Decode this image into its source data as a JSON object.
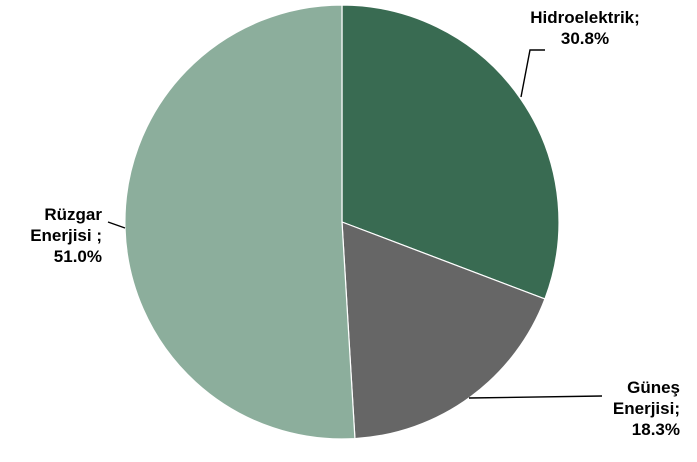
{
  "chart_data": {
    "type": "pie",
    "title": "",
    "start_angle_deg": 0,
    "direction": "clockwise",
    "slices": [
      {
        "label": "Hidroelektrik",
        "value": 30.8,
        "display": "30.8%",
        "color": "#396b52",
        "label_lines": [
          "Hidroelektrik;",
          "30.8%"
        ]
      },
      {
        "label": "Güneş Enerjisi",
        "value": 18.3,
        "display": "18.3%",
        "color": "#666666",
        "label_lines": [
          "Güneş",
          "Enerjisi;",
          "18.3%"
        ]
      },
      {
        "label": "Rüzgar Enerjisi",
        "value": 51.0,
        "display": "51.0%",
        "color": "#8cae9c",
        "label_lines": [
          "Rüzgar",
          "Enerjisi ;",
          "51.0%"
        ]
      }
    ],
    "legend": "none",
    "slice_border_color": "#ffffff",
    "leader_line_color": "#000000"
  }
}
